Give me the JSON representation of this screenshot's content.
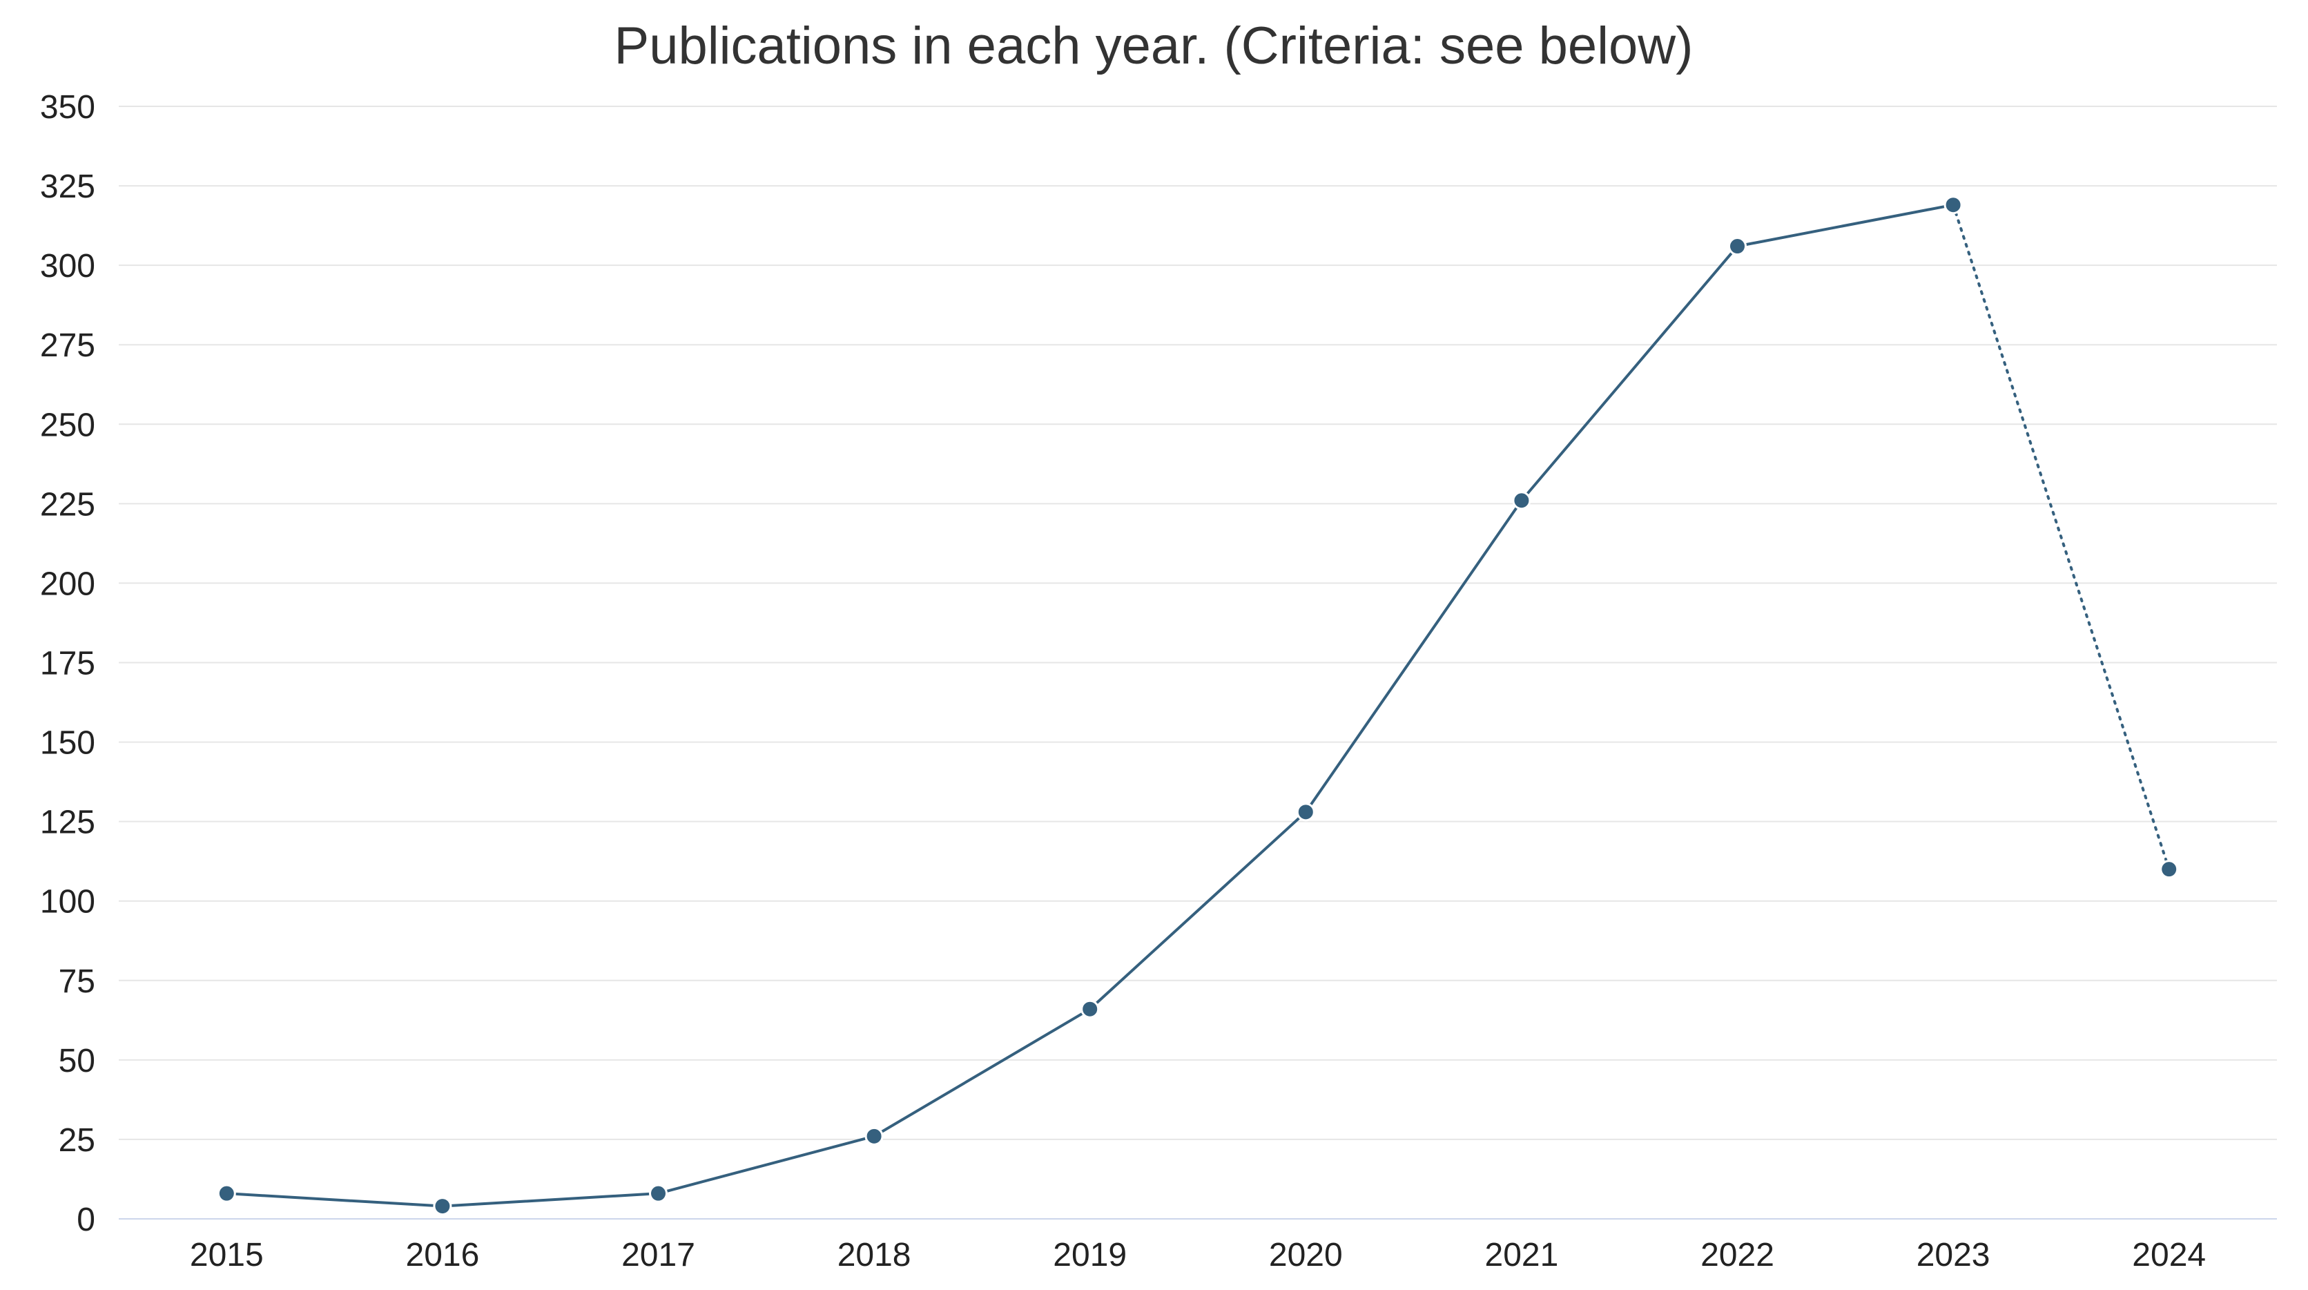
{
  "chart_data": {
    "type": "line",
    "title": "Publications in each year. (Criteria: see below)",
    "xlabel": "",
    "ylabel": "",
    "categories": [
      "2015",
      "2016",
      "2017",
      "2018",
      "2019",
      "2020",
      "2021",
      "2022",
      "2023",
      "2024"
    ],
    "series": [
      {
        "values": [
          8,
          4,
          8,
          26,
          66,
          128,
          226,
          306,
          319,
          110
        ],
        "dotted_last_segment": true
      }
    ],
    "ylim": [
      0,
      350
    ],
    "yticks": [
      0,
      25,
      50,
      75,
      100,
      125,
      150,
      175,
      200,
      225,
      250,
      275,
      300,
      325,
      350
    ],
    "grid": true,
    "legend": "none",
    "colors": {
      "series": "#35607e",
      "grid": "#e6e6e6",
      "axis": "#ccd6eb",
      "text": "#333333"
    }
  }
}
